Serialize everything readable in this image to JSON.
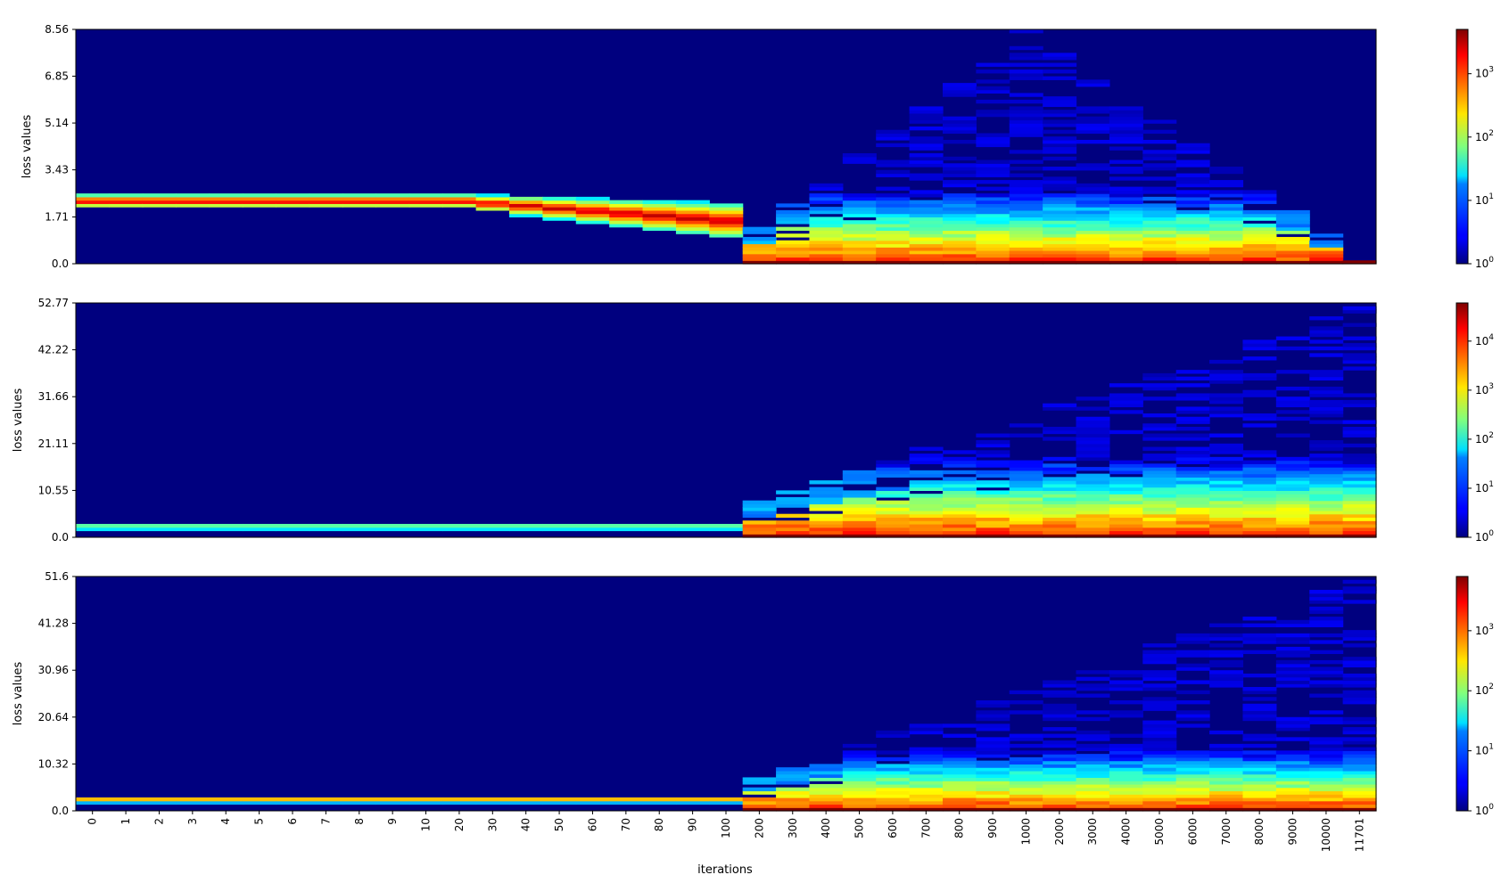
{
  "chart_data": {
    "type": "heatmap",
    "xlabel": "iterations",
    "x_tick_labels": [
      "0",
      "1",
      "2",
      "3",
      "4",
      "5",
      "6",
      "7",
      "8",
      "9",
      "10",
      "20",
      "30",
      "40",
      "50",
      "60",
      "70",
      "80",
      "90",
      "100",
      "200",
      "300",
      "400",
      "500",
      "600",
      "700",
      "800",
      "900",
      "1000",
      "2000",
      "3000",
      "4000",
      "5000",
      "6000",
      "7000",
      "8000",
      "9000",
      "10000",
      "11701"
    ],
    "colormap": "jet",
    "colorbar_scale": "log",
    "panels": [
      {
        "ylabel": "loss values",
        "y_tick_labels": [
          "0.0",
          "1.71",
          "3.43",
          "5.14",
          "6.85",
          "8.56"
        ],
        "ylim": [
          0,
          8.56
        ],
        "colorbar_max": 5000,
        "colorbar_tick_exponents": [
          "0",
          "1",
          "2",
          "3"
        ],
        "profile": {
          "early_center": 2.3,
          "early_width": 0.25,
          "late_center": 0.5,
          "late_width": 1.2,
          "spread_peak_iteration": "1000",
          "spread_max": 8.5,
          "spread_end": 0.3
        }
      },
      {
        "ylabel": "loss values",
        "y_tick_labels": [
          "0.0",
          "10.55",
          "21.11",
          "31.66",
          "42.22",
          "52.77"
        ],
        "ylim": [
          0,
          52.77
        ],
        "colorbar_max": 60000,
        "colorbar_tick_exponents": [
          "0",
          "1",
          "2",
          "3",
          "4"
        ],
        "profile": {
          "early_center": 2.3,
          "early_width": 0.5,
          "late_center": 1.5,
          "late_width": 8.0,
          "spread_peak_iteration": "11701",
          "spread_max": 52.0,
          "spread_end": 52.0
        }
      },
      {
        "ylabel": "loss values",
        "y_tick_labels": [
          "0.0",
          "10.32",
          "20.64",
          "30.96",
          "41.28",
          "51.6"
        ],
        "ylim": [
          0,
          51.6
        ],
        "colorbar_max": 8000,
        "colorbar_tick_exponents": [
          "0",
          "1",
          "2",
          "3"
        ],
        "profile": {
          "early_center": 2.4,
          "early_width": 0.5,
          "late_center": 1.2,
          "late_width": 6.0,
          "spread_peak_iteration": "11701",
          "spread_max": 51.0,
          "spread_end": 51.0
        }
      }
    ]
  }
}
